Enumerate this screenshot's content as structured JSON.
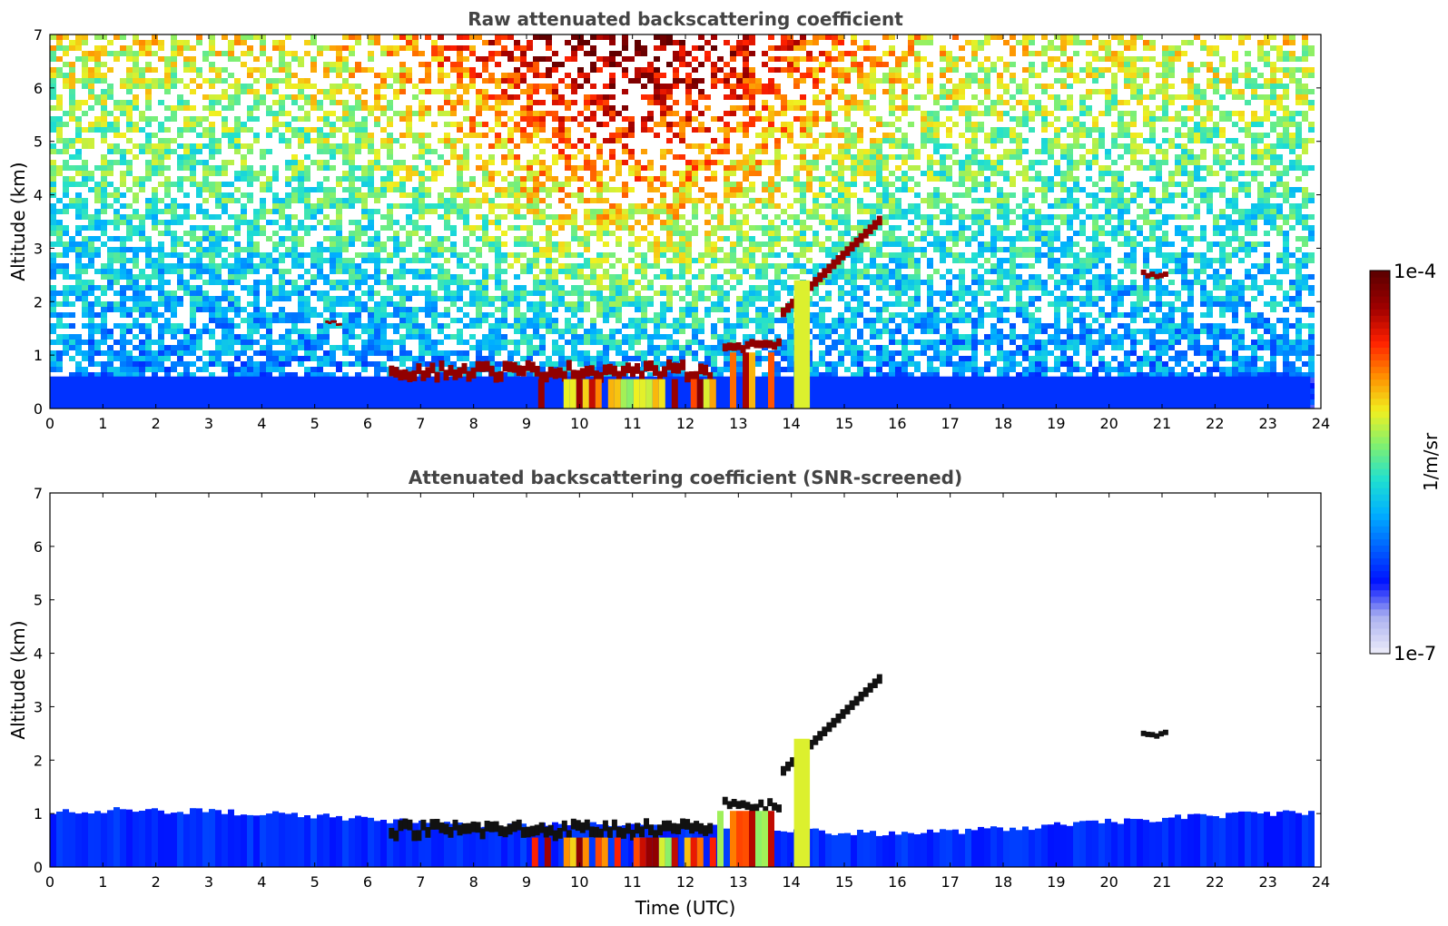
{
  "chart_data": [
    {
      "type": "heatmap",
      "title": "Raw attenuated backscattering coefficient",
      "xlabel": "",
      "ylabel": "Altitude (km)",
      "xlim": [
        0,
        24
      ],
      "ylim": [
        0,
        7
      ],
      "xticks": [
        "0",
        "1",
        "2",
        "3",
        "4",
        "5",
        "6",
        "7",
        "8",
        "9",
        "10",
        "11",
        "12",
        "13",
        "14",
        "15",
        "16",
        "17",
        "18",
        "19",
        "20",
        "21",
        "22",
        "23",
        "24"
      ],
      "yticks": [
        "0",
        "1",
        "2",
        "3",
        "4",
        "5",
        "6",
        "7"
      ],
      "data_end_time": 23.8,
      "features": [
        {
          "name": "boundary-layer",
          "time_range": [
            0,
            23.8
          ],
          "altitude_km": [
            0,
            0.6
          ],
          "level": "low"
        },
        {
          "name": "cloud-layer",
          "time_range": [
            6.4,
            12.5
          ],
          "altitude_km": [
            0.5,
            0.9
          ],
          "level": "high"
        },
        {
          "name": "cloud-layer",
          "time_range": [
            12.7,
            13.8
          ],
          "altitude_km": [
            1.0,
            1.3
          ],
          "level": "high"
        },
        {
          "name": "rising-cloud",
          "time_range": [
            13.8,
            15.7
          ],
          "altitude_km": [
            1.8,
            3.6
          ],
          "level": "high"
        },
        {
          "name": "isolated-cloud",
          "time_range": [
            20.6,
            21.1
          ],
          "altitude_km": [
            2.4,
            2.6
          ],
          "level": "high"
        },
        {
          "name": "isolated-cloud",
          "time_range": [
            5.2,
            5.5
          ],
          "altitude_km": [
            1.55,
            1.65
          ],
          "level": "high"
        }
      ]
    },
    {
      "type": "heatmap",
      "title": "Attenuated backscattering coefficient (SNR-screened)",
      "xlabel": "Time (UTC)",
      "ylabel": "Altitude (km)",
      "xlim": [
        0,
        24
      ],
      "ylim": [
        0,
        7
      ],
      "xticks": [
        "0",
        "1",
        "2",
        "3",
        "4",
        "5",
        "6",
        "7",
        "8",
        "9",
        "10",
        "11",
        "12",
        "13",
        "14",
        "15",
        "16",
        "17",
        "18",
        "19",
        "20",
        "21",
        "22",
        "23",
        "24"
      ],
      "yticks": [
        "0",
        "1",
        "2",
        "3",
        "4",
        "5",
        "6",
        "7"
      ],
      "data_end_time": 23.8,
      "features": [
        {
          "name": "boundary-layer",
          "time_range": [
            0,
            23.8
          ],
          "altitude_km": [
            0,
            1.0
          ],
          "level": "low"
        },
        {
          "name": "cloud-layer",
          "time_range": [
            6.4,
            12.5
          ],
          "altitude_km": [
            0.5,
            0.9
          ],
          "level": "saturated"
        },
        {
          "name": "cloud-layer",
          "time_range": [
            12.7,
            13.8
          ],
          "altitude_km": [
            1.0,
            1.3
          ],
          "level": "saturated"
        },
        {
          "name": "rising-cloud",
          "time_range": [
            13.8,
            15.7
          ],
          "altitude_km": [
            1.8,
            3.6
          ],
          "level": "saturated"
        },
        {
          "name": "isolated-cloud",
          "time_range": [
            20.6,
            21.1
          ],
          "altitude_km": [
            2.4,
            2.6
          ],
          "level": "saturated"
        }
      ]
    }
  ],
  "colorbar": {
    "max_label": "1e-4",
    "min_label": "1e-7",
    "units_label": "1/m/sr",
    "colors": [
      "#e8e8f8",
      "#aab0f0",
      "#0010ff",
      "#0060ff",
      "#00b0ff",
      "#20e0d0",
      "#80f070",
      "#f0f020",
      "#ff9000",
      "#ff2000",
      "#a00000",
      "#600000"
    ]
  }
}
